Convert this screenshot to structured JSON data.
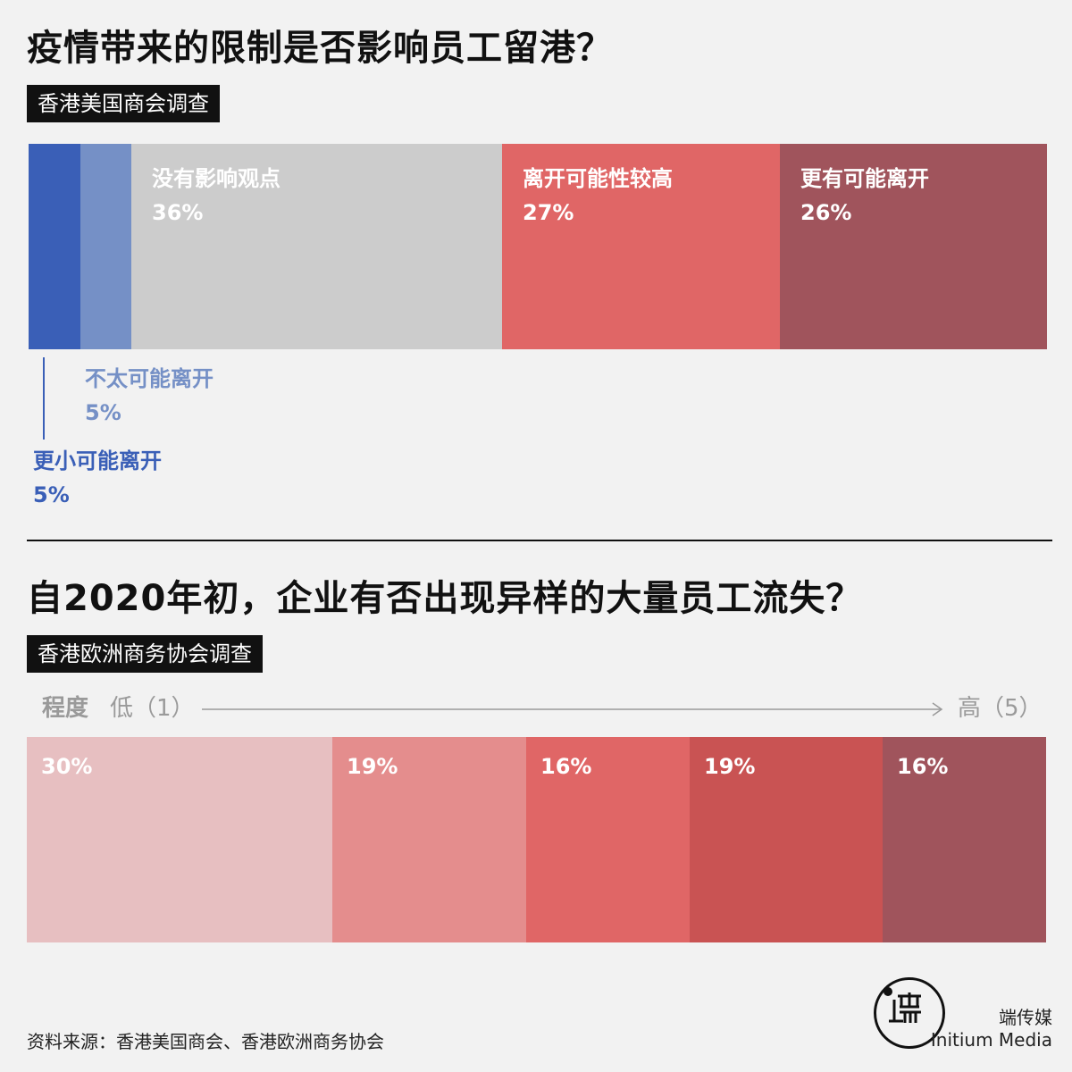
{
  "section1": {
    "title": "疫情带来的限制是否影响员工留港？",
    "source_tag": "香港美国商会调查",
    "labels_outside": {
      "unlikely": {
        "name": "不太可能离开",
        "pct": "5%"
      },
      "less_likely": {
        "name": "更小可能离开",
        "pct": "5%"
      }
    }
  },
  "section2": {
    "title": "自2020年初，企业有否出现异样的大量员工流失？",
    "source_tag": "香港欧洲商务协会调查",
    "scale": {
      "label": "程度",
      "low": "低（1）",
      "high": "高（5）"
    }
  },
  "footer": {
    "source": "资料来源：香港美国商会、香港欧洲商务协会",
    "brand_cn": "端传媒",
    "brand_en": "Initium Media"
  },
  "chart_data": [
    {
      "type": "bar",
      "orientation": "stacked-horizontal-100",
      "categories": [
        "更小可能离开",
        "不太可能离开",
        "没有影响观点",
        "离开可能性较高",
        "更有可能离开"
      ],
      "values": [
        5,
        5,
        36,
        27,
        26
      ],
      "value_labels": [
        "5%",
        "5%",
        "36%",
        "27%",
        "26%"
      ],
      "colors": [
        "#3a5fb7",
        "#7590c6",
        "#cccccc",
        "#e06666",
        "#a0545c"
      ]
    },
    {
      "type": "bar",
      "orientation": "stacked-horizontal-100",
      "categories": [
        "1",
        "2",
        "3",
        "4",
        "5"
      ],
      "values": [
        30,
        19,
        16,
        19,
        16
      ],
      "value_labels": [
        "30%",
        "19%",
        "16%",
        "19%",
        "16%"
      ],
      "colors": [
        "#e7bfc1",
        "#e48d8d",
        "#e06666",
        "#c95353",
        "#a0545c"
      ]
    }
  ]
}
